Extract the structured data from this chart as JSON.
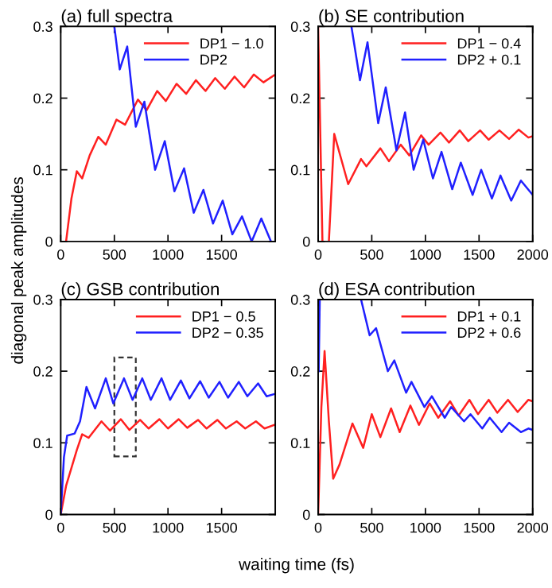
{
  "chart_data": [
    {
      "type": "line",
      "title": "(a) full spectra",
      "ylabel": "diagonal peak amplitudes",
      "xlim": [
        0,
        2000
      ],
      "ylim": [
        0,
        0.3
      ],
      "xticks": [
        0,
        500,
        1000,
        1500
      ],
      "yticks": [
        0,
        0.1,
        0.2,
        0.3
      ],
      "legend": "top right",
      "grid": false,
      "marker": "none",
      "line_style": "solid",
      "series": [
        {
          "name": "DP1 − 1.0",
          "color": "#ff2020",
          "x": [
            50,
            100,
            150,
            200,
            270,
            350,
            420,
            520,
            600,
            720,
            800,
            900,
            980,
            1080,
            1170,
            1260,
            1350,
            1440,
            1530,
            1620,
            1710,
            1800,
            1890,
            1990
          ],
          "values": [
            0,
            0.06,
            0.098,
            0.088,
            0.12,
            0.146,
            0.135,
            0.17,
            0.163,
            0.198,
            0.183,
            0.21,
            0.196,
            0.22,
            0.206,
            0.225,
            0.21,
            0.228,
            0.213,
            0.23,
            0.215,
            0.233,
            0.222,
            0.232
          ]
        },
        {
          "name": "DP2",
          "color": "#2020ff",
          "x": [
            500,
            550,
            620,
            700,
            780,
            880,
            970,
            1060,
            1150,
            1240,
            1330,
            1420,
            1510,
            1600,
            1690,
            1780,
            1870,
            1960
          ],
          "values": [
            0.3,
            0.24,
            0.272,
            0.16,
            0.195,
            0.1,
            0.14,
            0.07,
            0.102,
            0.04,
            0.072,
            0.025,
            0.057,
            0.01,
            0.035,
            0.0,
            0.032,
            0.0
          ]
        }
      ]
    },
    {
      "type": "line",
      "title": "(b) SE contribution",
      "xlim": [
        0,
        2000
      ],
      "ylim": [
        0,
        0.3
      ],
      "xticks": [
        0,
        500,
        1000,
        1500,
        2000
      ],
      "yticks": [
        0,
        0.1,
        0.2,
        0.3
      ],
      "legend": "top right",
      "grid": false,
      "marker": "none",
      "line_style": "solid",
      "series": [
        {
          "name": "DP1 − 0.4",
          "color": "#ff2020",
          "x": [
            0,
            40,
            70,
            100,
            150,
            280,
            400,
            450,
            580,
            660,
            770,
            850,
            960,
            1030,
            1140,
            1220,
            1320,
            1400,
            1510,
            1590,
            1690,
            1780,
            1870,
            1960,
            2000
          ],
          "values": [
            0.3,
            0,
            null,
            0,
            0.15,
            0.08,
            0.115,
            0.105,
            0.13,
            0.112,
            0.135,
            0.12,
            0.148,
            0.135,
            0.152,
            0.138,
            0.155,
            0.14,
            0.155,
            0.142,
            0.155,
            0.143,
            0.156,
            0.145,
            0.147
          ]
        },
        {
          "name": "DP2 + 0.1",
          "color": "#2020ff",
          "x": [
            310,
            390,
            460,
            560,
            630,
            730,
            810,
            890,
            980,
            1070,
            1150,
            1250,
            1330,
            1440,
            1520,
            1620,
            1700,
            1800,
            1890,
            2000
          ],
          "values": [
            0.3,
            0.225,
            0.278,
            0.165,
            0.215,
            0.127,
            0.18,
            0.1,
            0.142,
            0.088,
            0.125,
            0.073,
            0.11,
            0.065,
            0.1,
            0.06,
            0.092,
            0.057,
            0.085,
            0.065
          ]
        }
      ]
    },
    {
      "type": "line",
      "title": "(c) GSB contribution",
      "xlabel": "waiting time (fs)",
      "xlim": [
        0,
        2000
      ],
      "ylim": [
        0,
        0.3
      ],
      "xticks": [
        0,
        500,
        1000,
        1500
      ],
      "yticks": [
        0,
        0.1,
        0.2,
        0.3
      ],
      "legend": "top right",
      "grid": false,
      "marker": "none",
      "line_style": "solid",
      "series": [
        {
          "name": "DP1 − 0.5",
          "color": "#ff2020",
          "x": [
            0,
            50,
            100,
            150,
            200,
            260,
            380,
            460,
            560,
            640,
            740,
            820,
            920,
            1000,
            1100,
            1180,
            1280,
            1360,
            1460,
            1540,
            1640,
            1720,
            1820,
            1900,
            1990
          ],
          "values": [
            0,
            0.04,
            0.065,
            0.09,
            0.112,
            0.107,
            0.13,
            0.117,
            0.133,
            0.118,
            0.132,
            0.12,
            0.133,
            0.12,
            0.133,
            0.121,
            0.132,
            0.12,
            0.132,
            0.12,
            0.13,
            0.12,
            0.13,
            0.12,
            0.125
          ]
        },
        {
          "name": "DP2 − 0.35",
          "color": "#2020ff",
          "x": [
            0,
            30,
            60,
            130,
            180,
            240,
            320,
            420,
            490,
            590,
            670,
            760,
            840,
            940,
            1020,
            1120,
            1200,
            1300,
            1380,
            1480,
            1560,
            1660,
            1740,
            1840,
            1920,
            1990
          ],
          "values": [
            0,
            0.08,
            0.11,
            0.113,
            0.13,
            0.178,
            0.148,
            0.19,
            0.155,
            0.19,
            0.16,
            0.19,
            0.16,
            0.19,
            0.16,
            0.187,
            0.162,
            0.186,
            0.163,
            0.185,
            0.163,
            0.185,
            0.165,
            0.183,
            0.165,
            0.168
          ]
        }
      ]
    },
    {
      "type": "line",
      "title": "(d) ESA contribution",
      "xlim": [
        0,
        2000
      ],
      "ylim": [
        0,
        0.3
      ],
      "xticks": [
        0,
        500,
        1000,
        1500,
        2000
      ],
      "yticks": [
        0,
        0.1,
        0.2,
        0.3
      ],
      "legend": "top right",
      "grid": false,
      "marker": "none",
      "line_style": "solid",
      "series": [
        {
          "name": "DP1 + 0.1",
          "color": "#ff2020",
          "x": [
            0,
            30,
            60,
            100,
            140,
            200,
            320,
            420,
            500,
            580,
            680,
            760,
            860,
            940,
            1040,
            1120,
            1230,
            1310,
            1410,
            1490,
            1590,
            1670,
            1770,
            1860,
            1960,
            2000
          ],
          "values": [
            0,
            0.15,
            0.228,
            0.13,
            0.05,
            0.07,
            0.127,
            0.093,
            0.14,
            0.108,
            0.148,
            0.115,
            0.152,
            0.125,
            0.155,
            0.135,
            0.158,
            0.138,
            0.16,
            0.14,
            0.16,
            0.142,
            0.16,
            0.143,
            0.16,
            0.158
          ]
        },
        {
          "name": "DP2 + 0.6",
          "color": "#2020ff",
          "x": [
            5,
            15,
            200,
            400,
            480,
            540,
            650,
            710,
            820,
            870,
            990,
            1060,
            1180,
            1240,
            1360,
            1420,
            1530,
            1600,
            1710,
            1780,
            1890,
            1960,
            2000
          ],
          "values": [
            0.2,
            0.3,
            null,
            0.3,
            0.25,
            0.26,
            0.2,
            0.215,
            0.17,
            0.185,
            0.15,
            0.165,
            0.135,
            0.15,
            0.13,
            0.14,
            0.12,
            0.135,
            0.115,
            0.128,
            0.115,
            0.12,
            0.118
          ]
        }
      ]
    }
  ]
}
